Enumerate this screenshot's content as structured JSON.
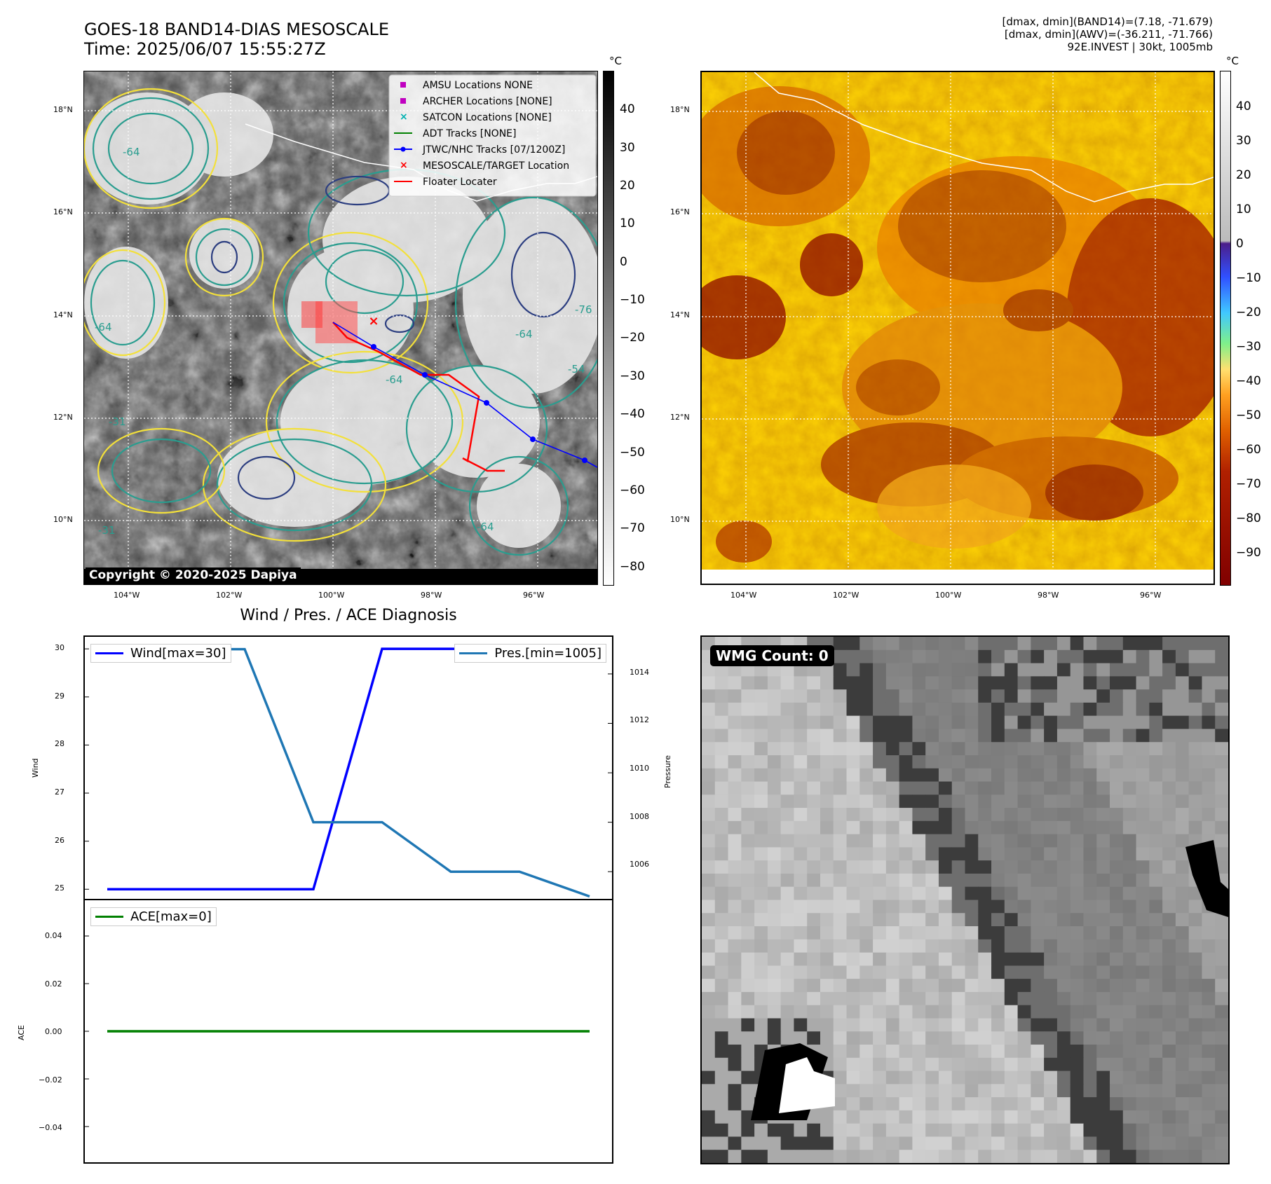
{
  "header": {
    "title_line1": "GOES-18 BAND14-DIAS MESOSCALE",
    "title_line2": "Time: 2025/06/07 15:55:27Z",
    "info_line1": "[dmax, dmin](BAND14)=(7.18, -71.679)",
    "info_line2": "[dmax, dmin](AWV)=(-36.211, -71.766)",
    "info_line3": "92E.INVEST | 30kt, 1005mb"
  },
  "map_left": {
    "copyright": "Copyright © 2020-2025 Dapiya",
    "colorbar_unit": "°C",
    "colorbar_ticks": [
      "40",
      "30",
      "20",
      "10",
      "0",
      "−10",
      "−20",
      "−30",
      "−40",
      "−50",
      "−60",
      "−70",
      "−80"
    ],
    "lat_labels": [
      "18°N",
      "16°N",
      "14°N",
      "12°N",
      "10°N"
    ],
    "lon_labels": [
      "104°W",
      "102°W",
      "100°W",
      "98°W",
      "96°W"
    ],
    "contour_labels": [
      "-64",
      "-64",
      "-64",
      "-64",
      "-76",
      "-54",
      "-31",
      "-31",
      "-64"
    ],
    "legend": [
      {
        "label": "AMSU Locations NONE",
        "marker": "square",
        "color": "#c000c0"
      },
      {
        "label": "ARCHER Locations [NONE]",
        "marker": "square",
        "color": "#c000c0"
      },
      {
        "label": "SATCON Locations [NONE]",
        "marker": "x",
        "color": "#00b0b0"
      },
      {
        "label": "ADT Tracks [NONE]",
        "marker": "line",
        "color": "#008000"
      },
      {
        "label": "JTWC/NHC Tracks [07/1200Z]",
        "marker": "line-dot",
        "color": "#0000ff"
      },
      {
        "label": "MESOSCALE/TARGET Location",
        "marker": "x",
        "color": "#ff0000"
      },
      {
        "label": "Floater Locater",
        "marker": "line",
        "color": "#ff0000"
      }
    ]
  },
  "map_right": {
    "colorbar_unit": "°C",
    "colorbar_ticks": [
      "40",
      "30",
      "20",
      "10",
      "0",
      "−10",
      "−20",
      "−30",
      "−40",
      "−50",
      "−60",
      "−70",
      "−80",
      "−90"
    ],
    "lat_labels": [
      "18°N",
      "16°N",
      "14°N",
      "12°N",
      "10°N"
    ],
    "lon_labels": [
      "104°W",
      "102°W",
      "100°W",
      "98°W",
      "96°W"
    ]
  },
  "diagnosis": {
    "title": "Wind / Pres. / ACE Diagnosis",
    "wind_ylabel": "Wind",
    "pressure_ylabel": "Pressure",
    "ace_ylabel": "ACE",
    "wind_legend": "Wind[max=30]",
    "pres_legend": "Pres.[min=1005]",
    "ace_legend": "ACE[max=0]",
    "wind_ticks": [
      "30",
      "29",
      "28",
      "27",
      "26",
      "25"
    ],
    "pres_ticks": [
      "1014",
      "1012",
      "1010",
      "1008",
      "1006"
    ],
    "ace_ticks": [
      "0.04",
      "0.02",
      "0.00",
      "−0.02",
      "−0.04"
    ]
  },
  "wmg": {
    "label": "WMG Count: 0"
  },
  "colors": {
    "wind": "#0000ff",
    "pressure": "#1f77b4",
    "ace": "#008000"
  },
  "chart_data": [
    {
      "type": "line",
      "title": "Wind / Pres. / ACE Diagnosis",
      "ylabel": "Wind",
      "series": [
        {
          "name": "Wind[max=30]",
          "values": [
            25,
            25,
            25,
            25,
            30,
            30,
            30,
            30
          ]
        },
        {
          "name": "Pres.[min=1005]",
          "values": [
            1015,
            1015,
            1008,
            1008,
            1006,
            1006,
            1005
          ]
        }
      ],
      "ylim_wind": [
        24.8,
        30.25
      ],
      "ylim_pressure": [
        1004.9,
        1015.5
      ]
    },
    {
      "type": "line",
      "ylabel": "ACE",
      "series": [
        {
          "name": "ACE[max=0]",
          "values": [
            0,
            0
          ]
        }
      ],
      "ylim": [
        -0.055,
        0.055
      ]
    }
  ]
}
